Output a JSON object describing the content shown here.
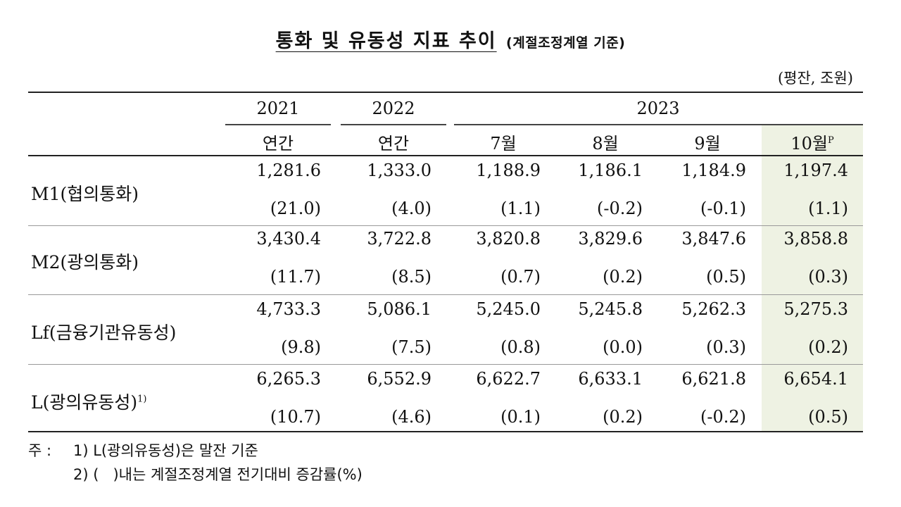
{
  "title": {
    "main": "통화 및 유동성 지표 추이",
    "sub": "(계절조정계열 기준)"
  },
  "unit": "(평잔, 조원)",
  "header": {
    "years": {
      "y2021": "2021",
      "y2022": "2022",
      "y2023": "2023"
    },
    "cols": [
      "연간",
      "연간",
      "7월",
      "8월",
      "9월",
      "10월"
    ],
    "last_col_superscript": "P"
  },
  "rows": [
    {
      "label": "M1(협의통화)",
      "sup": "",
      "values": [
        "1,281.6",
        "1,333.0",
        "1,188.9",
        "1,186.1",
        "1,184.9",
        "1,197.4"
      ],
      "changes": [
        "(21.0)",
        "(4.0)",
        "(1.1)",
        "(-0.2)",
        "(-0.1)",
        "(1.1)"
      ]
    },
    {
      "label": "M2(광의통화)",
      "sup": "",
      "values": [
        "3,430.4",
        "3,722.8",
        "3,820.8",
        "3,829.6",
        "3,847.6",
        "3,858.8"
      ],
      "changes": [
        "(11.7)",
        "(8.5)",
        "(0.7)",
        "(0.2)",
        "(0.5)",
        "(0.3)"
      ]
    },
    {
      "label": "Lf(금융기관유동성)",
      "sup": "",
      "values": [
        "4,733.3",
        "5,086.1",
        "5,245.0",
        "5,245.8",
        "5,262.3",
        "5,275.3"
      ],
      "changes": [
        "(9.8)",
        "(7.5)",
        "(0.8)",
        "(0.0)",
        "(0.3)",
        "(0.2)"
      ]
    },
    {
      "label": "L(광의유동성)",
      "sup": "1)",
      "values": [
        "6,265.3",
        "6,552.9",
        "6,622.7",
        "6,633.1",
        "6,621.8",
        "6,654.1"
      ],
      "changes": [
        "(10.7)",
        "(4.6)",
        "(0.1)",
        "(0.2)",
        "(-0.2)",
        "(0.5)"
      ]
    }
  ],
  "notes": {
    "prefix": "주 :",
    "n1": "1) L(광의유동성)은 말잔 기준",
    "n2": "2) (   )내는 계절조정계열 전기대비 증감률(%)"
  }
}
